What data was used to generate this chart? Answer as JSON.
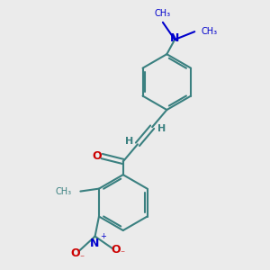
{
  "bg_color": "#ebebeb",
  "bond_color": "#3a8080",
  "N_color": "#0000cc",
  "O_color": "#cc0000",
  "lw": 1.5,
  "figsize": [
    3.0,
    3.0
  ],
  "dpi": 100,
  "xlim": [
    0,
    10
  ],
  "ylim": [
    0,
    10
  ]
}
